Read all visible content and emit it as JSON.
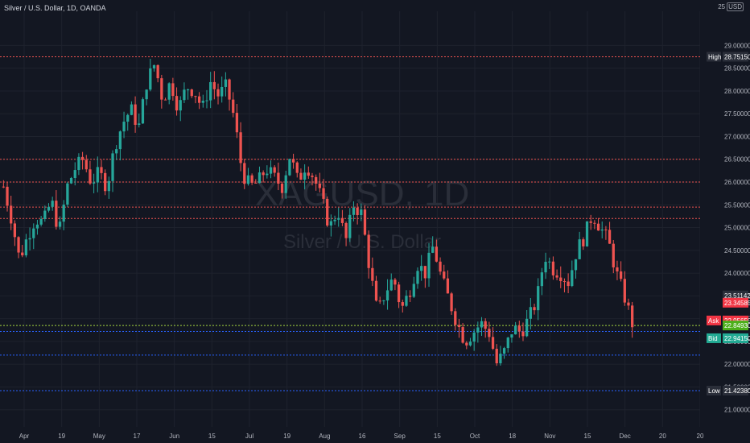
{
  "header": {
    "symbol_line": "Silver / U.S. Dollar, 1D, OANDA",
    "currency_number": "25",
    "currency_unit": "USD"
  },
  "watermark": {
    "ticker": "XAGUSD, 1D",
    "name": "Silver / U.S. Dollar"
  },
  "colors": {
    "background": "#131722",
    "up": "#26a69a",
    "down": "#ef5350",
    "resistance": "#ef5350",
    "support": "#2962ff",
    "last_price": "#a5d63f",
    "text": "#b2b5be"
  },
  "chart_data": {
    "type": "candlestick",
    "ylim": [
      20.8,
      29.75
    ],
    "x_ticks": [
      "Apr",
      "19",
      "May",
      "17",
      "Jun",
      "15",
      "Jul",
      "19",
      "Aug",
      "16",
      "Sep",
      "15",
      "Oct",
      "18",
      "Nov",
      "15",
      "Dec",
      "20",
      "20"
    ],
    "y_ticks": [
      "21.00000",
      "21.50000",
      "22.00000",
      "22.50000",
      "23.00000",
      "23.50000",
      "24.00000",
      "24.50000",
      "25.00000",
      "25.50000",
      "26.00000",
      "26.50000",
      "27.00000",
      "27.50000",
      "28.00000",
      "28.50000",
      "29.00000"
    ],
    "resistance_levels": [
      28.7515,
      26.5,
      26.0,
      25.45,
      25.2
    ],
    "support_levels": [
      22.72,
      22.2,
      21.42
    ],
    "last_price_level": 22.85,
    "price_labels": [
      {
        "tag": "High",
        "value": "28.75150",
        "level": 28.7515
      },
      {
        "tag": "",
        "value": "23.51142",
        "level": 23.51
      },
      {
        "tag": "",
        "value": "23.34585",
        "level": 23.35
      },
      {
        "tag": "Ask",
        "value": "22.95650",
        "level": 22.96
      },
      {
        "tag": "",
        "value": "22.84930",
        "level": 22.85
      },
      {
        "tag": "Bid",
        "value": "22.94150",
        "level": 22.57
      },
      {
        "tag": "Low",
        "value": "21.42380",
        "level": 21.42
      }
    ],
    "price_path": [
      25.9,
      25.2,
      24.3,
      24.8,
      25.2,
      25.1,
      25.6,
      24.9,
      25.9,
      26.3,
      26.5,
      26.0,
      26.2,
      25.9,
      26.8,
      27.3,
      27.6,
      27.2,
      28.2,
      28.6,
      27.8,
      28.2,
      27.6,
      28.1,
      28.0,
      27.6,
      28.2,
      27.9,
      28.1,
      27.4,
      26.2,
      25.9,
      26.0,
      26.3,
      26.1,
      25.9,
      26.6,
      26.0,
      26.4,
      26.1,
      25.6,
      25.0,
      25.4,
      24.7,
      25.5,
      25.3,
      24.1,
      23.1,
      23.6,
      23.9,
      23.2,
      23.6,
      24.2,
      24.0,
      24.6,
      23.9,
      23.4,
      22.9,
      22.5,
      22.7,
      22.9,
      22.7,
      22.0,
      22.3,
      22.8,
      22.7,
      23.0,
      23.4,
      24.4,
      24.1,
      24.0,
      23.8,
      24.5,
      24.8,
      25.3,
      25.0,
      24.7,
      24.0,
      23.5,
      22.9
    ]
  }
}
